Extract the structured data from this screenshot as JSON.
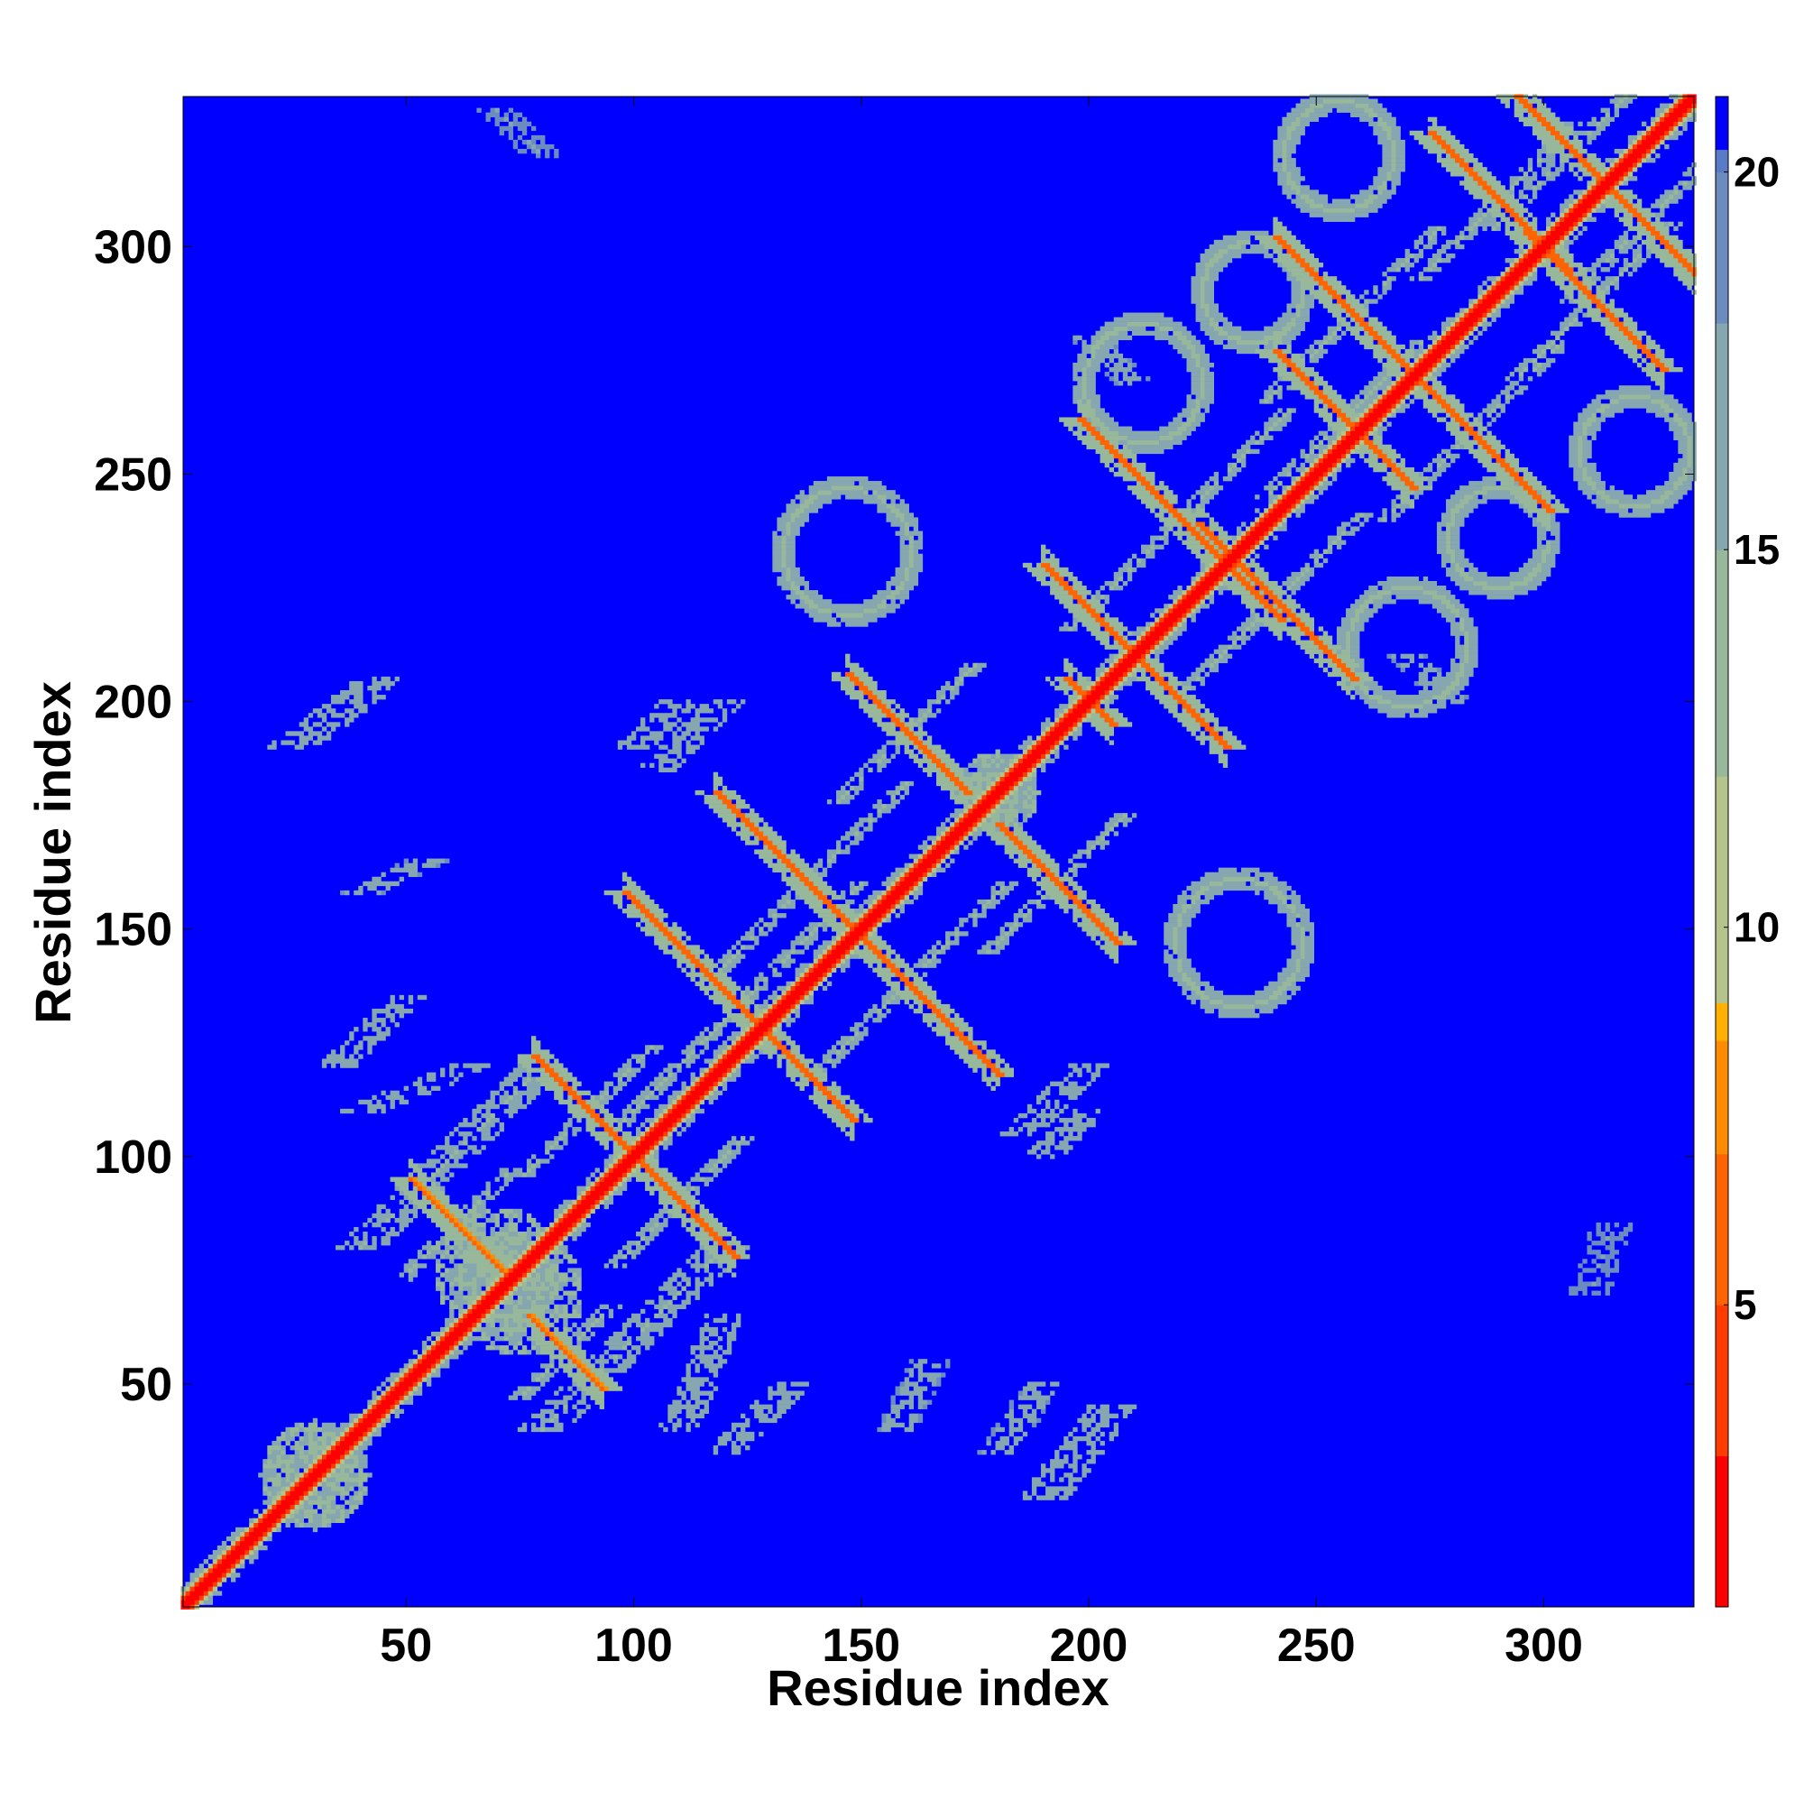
{
  "chart_data": {
    "type": "heatmap",
    "title": "",
    "xlabel": "Residue index",
    "ylabel": "Residue index",
    "xlim": [
      1,
      333
    ],
    "ylim": [
      1,
      333
    ],
    "x_ticks": [
      50,
      100,
      150,
      200,
      250,
      300
    ],
    "x_tick_labels": [
      "50",
      "100",
      "150",
      "200",
      "250",
      "300"
    ],
    "y_ticks": [
      50,
      100,
      150,
      200,
      250,
      300
    ],
    "y_tick_labels": [
      "50",
      "100",
      "150",
      "200",
      "250",
      "300"
    ],
    "colorbar": {
      "range": [
        1,
        21
      ],
      "ticks": [
        5,
        10,
        15,
        20
      ],
      "tick_labels": [
        "5",
        "10",
        "15",
        "20"
      ],
      "stops": [
        {
          "value": 1,
          "color": "#ff0000"
        },
        {
          "value": 3,
          "color": "#ff3b00"
        },
        {
          "value": 5,
          "color": "#ff6400"
        },
        {
          "value": 7,
          "color": "#ff8c00"
        },
        {
          "value": 8.5,
          "color": "#ffb000"
        },
        {
          "value": 9,
          "color": "#b4c48a"
        },
        {
          "value": 12,
          "color": "#98b89c"
        },
        {
          "value": 15,
          "color": "#86a6b0"
        },
        {
          "value": 18,
          "color": "#6c8cc0"
        },
        {
          "value": 20,
          "color": "#5a7cc8"
        },
        {
          "value": 20.3,
          "color": "#0000ff"
        },
        {
          "value": 21,
          "color": "#0000ff"
        }
      ]
    },
    "background": {
      "value": 21,
      "color": "#0000ff"
    },
    "diagonal": {
      "from": 1,
      "to": 333,
      "value": 1.5
    },
    "features": [
      {
        "kind": "antidiag",
        "cx": 61,
        "cy": 85,
        "len": 10,
        "core": 7,
        "halo": 15
      },
      {
        "kind": "antidiag",
        "cx": 90,
        "cy": 110,
        "len": 12,
        "core": 6,
        "halo": 15
      },
      {
        "kind": "antidiag",
        "cx": 110,
        "cy": 90,
        "len": 12,
        "core": 6,
        "halo": 15
      },
      {
        "kind": "antidiag",
        "cx": 123,
        "cy": 133,
        "len": 25,
        "core": 6,
        "halo": 15
      },
      {
        "kind": "antidiag",
        "cx": 138,
        "cy": 160,
        "len": 20,
        "core": 6,
        "halo": 15
      },
      {
        "kind": "antidiag",
        "cx": 160,
        "cy": 138,
        "len": 20,
        "core": 6,
        "halo": 15
      },
      {
        "kind": "antidiag",
        "cx": 160,
        "cy": 193,
        "len": 13,
        "core": 6,
        "halo": 15
      },
      {
        "kind": "antidiag",
        "cx": 193,
        "cy": 160,
        "len": 13,
        "core": 6,
        "halo": 15
      },
      {
        "kind": "antidiag",
        "cx": 210,
        "cy": 210,
        "len": 20,
        "core": 6,
        "halo": 15
      },
      {
        "kind": "antidiag",
        "cx": 200,
        "cy": 200,
        "len": 5,
        "core": 6,
        "halo": 15
      },
      {
        "kind": "antidiag",
        "cx": 220,
        "cy": 240,
        "len": 22,
        "core": 6,
        "halo": 15
      },
      {
        "kind": "antidiag",
        "cx": 241,
        "cy": 222,
        "len": 17,
        "core": 6,
        "halo": 15
      },
      {
        "kind": "antidiag",
        "cx": 256,
        "cy": 262,
        "len": 15,
        "core": 6,
        "halo": 15
      },
      {
        "kind": "antidiag",
        "cx": 258,
        "cy": 285,
        "len": 17,
        "core": 6,
        "halo": 15
      },
      {
        "kind": "antidiag",
        "cx": 284,
        "cy": 259,
        "len": 17,
        "core": 6,
        "halo": 15
      },
      {
        "kind": "antidiag",
        "cx": 290,
        "cy": 310,
        "len": 15,
        "core": 6,
        "halo": 15
      },
      {
        "kind": "antidiag",
        "cx": 311,
        "cy": 288,
        "len": 15,
        "core": 6,
        "halo": 15
      },
      {
        "kind": "antidiag",
        "cx": 306,
        "cy": 321,
        "len": 15,
        "core": 6,
        "halo": 15
      },
      {
        "kind": "antidiag",
        "cx": 322,
        "cy": 305,
        "len": 15,
        "core": 6,
        "halo": 15
      },
      {
        "kind": "antidiag",
        "cx": 85,
        "cy": 57,
        "len": 8,
        "core": 7,
        "halo": 15
      },
      {
        "kind": "blob",
        "cx": 75,
        "cy": 70,
        "rx": 14,
        "ry": 14,
        "value": 15
      },
      {
        "kind": "blob",
        "cx": 180,
        "cy": 180,
        "rx": 9,
        "ry": 9,
        "value": 14
      },
      {
        "kind": "blob",
        "cx": 30,
        "cy": 30,
        "rx": 12,
        "ry": 12,
        "value": 14
      },
      {
        "kind": "ring",
        "cx": 147,
        "cy": 233,
        "r": 14,
        "value": 15
      },
      {
        "kind": "ring",
        "cx": 233,
        "cy": 147,
        "r": 14,
        "value": 15
      },
      {
        "kind": "ring",
        "cx": 212,
        "cy": 270,
        "r": 13,
        "value": 15
      },
      {
        "kind": "ring",
        "cx": 270,
        "cy": 212,
        "r": 13,
        "value": 15
      },
      {
        "kind": "ring",
        "cx": 255,
        "cy": 320,
        "r": 12,
        "value": 15
      },
      {
        "kind": "ring",
        "cx": 320,
        "cy": 255,
        "r": 12,
        "value": 15
      },
      {
        "kind": "ring",
        "cx": 236,
        "cy": 290,
        "r": 11,
        "value": 15
      },
      {
        "kind": "ring",
        "cx": 290,
        "cy": 236,
        "r": 11,
        "value": 15
      },
      {
        "kind": "band",
        "x0": 80,
        "y0": 120,
        "x1": 40,
        "y1": 80,
        "w": 5,
        "value": 15
      },
      {
        "kind": "band",
        "x0": 120,
        "y0": 80,
        "x1": 80,
        "y1": 40,
        "w": 5,
        "value": 15
      },
      {
        "kind": "band",
        "x0": 50,
        "y0": 135,
        "x1": 35,
        "y1": 120,
        "w": 4,
        "value": 16
      },
      {
        "kind": "band",
        "x0": 135,
        "y0": 50,
        "x1": 120,
        "y1": 35,
        "w": 4,
        "value": 16
      },
      {
        "kind": "band",
        "x0": 25,
        "y0": 190,
        "x1": 45,
        "y1": 205,
        "w": 5,
        "value": 16
      },
      {
        "kind": "band",
        "x0": 190,
        "y0": 25,
        "x1": 205,
        "y1": 45,
        "w": 5,
        "value": 16
      },
      {
        "kind": "band",
        "x0": 40,
        "y0": 158,
        "x1": 55,
        "y1": 165,
        "w": 4,
        "value": 17
      },
      {
        "kind": "band",
        "x0": 158,
        "y0": 40,
        "x1": 165,
        "y1": 55,
        "w": 4,
        "value": 17
      },
      {
        "kind": "band",
        "x0": 40,
        "y0": 110,
        "x1": 65,
        "y1": 120,
        "w": 4,
        "value": 16
      },
      {
        "kind": "band",
        "x0": 110,
        "y0": 40,
        "x1": 120,
        "y1": 65,
        "w": 4,
        "value": 16
      },
      {
        "kind": "band",
        "x0": 190,
        "y0": 100,
        "x1": 200,
        "y1": 110,
        "w": 4,
        "value": 16
      },
      {
        "kind": "band",
        "x0": 100,
        "y0": 190,
        "x1": 110,
        "y1": 200,
        "w": 4,
        "value": 16
      },
      {
        "kind": "band",
        "x0": 120,
        "y0": 200,
        "x1": 105,
        "y1": 185,
        "w": 4,
        "value": 16
      },
      {
        "kind": "band",
        "x0": 200,
        "y0": 120,
        "x1": 185,
        "y1": 105,
        "w": 4,
        "value": 16
      },
      {
        "kind": "band",
        "x0": 210,
        "y0": 270,
        "x1": 200,
        "y1": 280,
        "w": 4,
        "value": 17
      },
      {
        "kind": "band",
        "x0": 270,
        "y0": 210,
        "x1": 280,
        "y1": 200,
        "w": 4,
        "value": 17
      },
      {
        "kind": "band",
        "x0": 70,
        "y0": 330,
        "x1": 80,
        "y1": 320,
        "w": 4,
        "value": 18
      },
      {
        "kind": "band",
        "x0": 310,
        "y0": 70,
        "x1": 315,
        "y1": 85,
        "w": 4,
        "value": 18
      },
      {
        "kind": "band",
        "x0": 180,
        "y0": 35,
        "x1": 190,
        "y1": 50,
        "w": 4,
        "value": 17
      }
    ]
  }
}
